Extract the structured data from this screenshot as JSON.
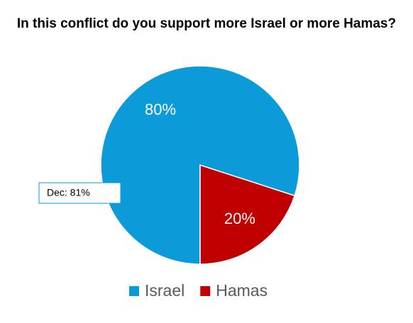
{
  "chart_data": {
    "type": "pie",
    "title": "In this conflict do you support more Israel or more Hamas?",
    "categories": [
      "Israel",
      "Hamas"
    ],
    "values": [
      80,
      20
    ],
    "value_labels": [
      "80%",
      "20%"
    ],
    "colors": [
      "#0b9bd8",
      "#c00000"
    ],
    "annotation": "Dec: 81%",
    "legend": "bottom"
  }
}
